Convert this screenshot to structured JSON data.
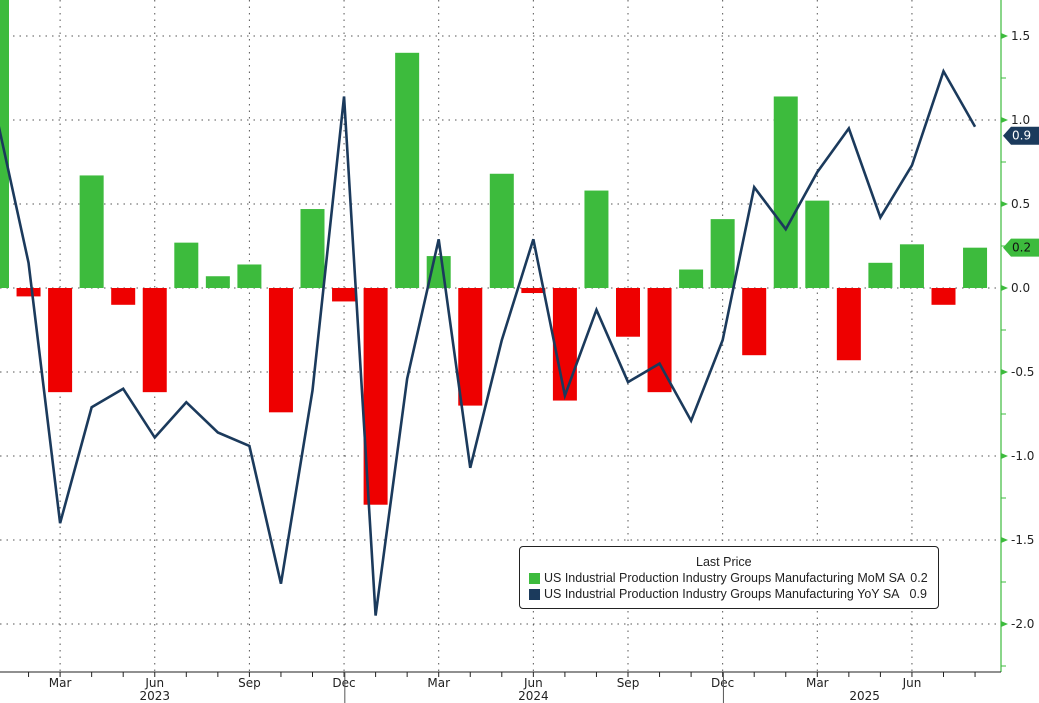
{
  "chart_data": {
    "type": "bar+line",
    "title": "",
    "xlabel": "",
    "ylabel": "",
    "ylim": [
      -2.3,
      1.72
    ],
    "yticks": [
      "1.5",
      "1.0",
      "0.5",
      "0.0",
      "-0.5",
      "-1.0",
      "-1.5",
      "-2.0"
    ],
    "ytick_values": [
      1.5,
      1.0,
      0.5,
      0.0,
      -0.5,
      -1.0,
      -1.5,
      -2.0
    ],
    "grid": true,
    "legend_placement": "bottom-right",
    "legend_title": "Last Price",
    "months": [
      "Jan 2023",
      "Feb 2023",
      "Mar 2023",
      "Apr 2023",
      "May 2023",
      "Jun 2023",
      "Jul 2023",
      "Aug 2023",
      "Sep 2023",
      "Oct 2023",
      "Nov 2023",
      "Dec 2023",
      "Jan 2024",
      "Feb 2024",
      "Mar 2024",
      "Apr 2024",
      "May 2024",
      "Jun 2024",
      "Jul 2024",
      "Aug 2024",
      "Sep 2024",
      "Oct 2024",
      "Nov 2024",
      "Dec 2024",
      "Jan 2025",
      "Feb 2025",
      "Mar 2025",
      "Apr 2025",
      "May 2025",
      "Jun 2025",
      "Jul 2025",
      "Aug 2025"
    ],
    "x_tick_labels": [
      {
        "month_index": 2,
        "label": "Mar"
      },
      {
        "month_index": 5,
        "label": "Jun"
      },
      {
        "month_index": 8,
        "label": "Sep"
      },
      {
        "month_index": 11,
        "label": "Dec"
      },
      {
        "month_index": 14,
        "label": "Mar"
      },
      {
        "month_index": 17,
        "label": "Jun"
      },
      {
        "month_index": 20,
        "label": "Sep"
      },
      {
        "month_index": 23,
        "label": "Dec"
      },
      {
        "month_index": 26,
        "label": "Mar"
      },
      {
        "month_index": 29,
        "label": "Jun"
      }
    ],
    "year_labels": [
      {
        "month_index": 5,
        "label": "2023"
      },
      {
        "month_index": 17,
        "label": "2024"
      },
      {
        "month_index": 27.5,
        "label": "2025"
      }
    ],
    "series": [
      {
        "name": "US Industrial Production Industry Groups Manufacturing MoM SA",
        "type": "bar",
        "last_label": "0.2",
        "color_pos": "#3dbb3d",
        "color_neg": "#ee0000",
        "values": [
          1.8,
          -0.05,
          -0.62,
          0.67,
          -0.1,
          -0.62,
          0.27,
          0.07,
          0.14,
          -0.74,
          0.47,
          -0.08,
          -1.29,
          1.4,
          0.19,
          -0.7,
          0.68,
          -0.03,
          -0.67,
          0.58,
          -0.29,
          -0.62,
          0.11,
          0.41,
          -0.4,
          1.14,
          0.52,
          -0.43,
          0.15,
          0.26,
          -0.1,
          0.24
        ]
      },
      {
        "name": "US Industrial Production Industry Groups Manufacturing YoY SA",
        "type": "line",
        "last_label": "0.9",
        "color": "#1b3a5c",
        "values": [
          1.01,
          0.15,
          -1.4,
          -0.71,
          -0.6,
          -0.89,
          -0.68,
          -0.86,
          -0.94,
          -1.76,
          -0.61,
          1.14,
          -1.95,
          -0.54,
          0.29,
          -1.07,
          -0.31,
          0.29,
          -0.64,
          -0.13,
          -0.56,
          -0.45,
          -0.79,
          -0.31,
          0.6,
          0.35,
          0.69,
          0.95,
          0.42,
          0.73,
          1.29,
          0.96
        ]
      }
    ]
  }
}
